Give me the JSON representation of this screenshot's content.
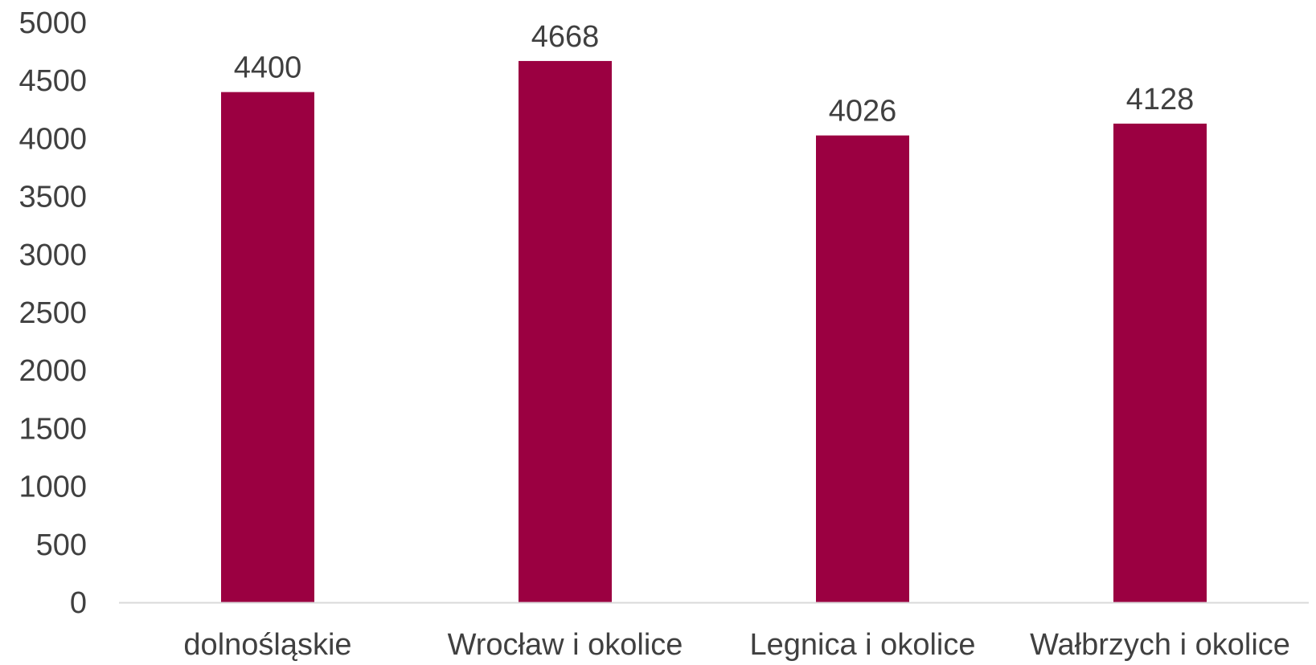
{
  "chart_data": {
    "type": "bar",
    "categories": [
      "dolnośląskie",
      "Wrocław i okolice",
      "Legnica i okolice",
      "Wałbrzych i okolice"
    ],
    "values": [
      4400,
      4668,
      4026,
      4128
    ],
    "data_labels": [
      "4400",
      "4668",
      "4026",
      "4128"
    ],
    "title": "",
    "xlabel": "",
    "ylabel": "",
    "ylim": [
      0,
      5000
    ],
    "yticks": [
      "0",
      "500",
      "1000",
      "1500",
      "2000",
      "2500",
      "3000",
      "3500",
      "4000",
      "4500",
      "5000"
    ],
    "grid": false,
    "legend": "none",
    "bar_color": "#9b0041",
    "axis_color": "#d9d9d9",
    "text_color": "#404040"
  }
}
